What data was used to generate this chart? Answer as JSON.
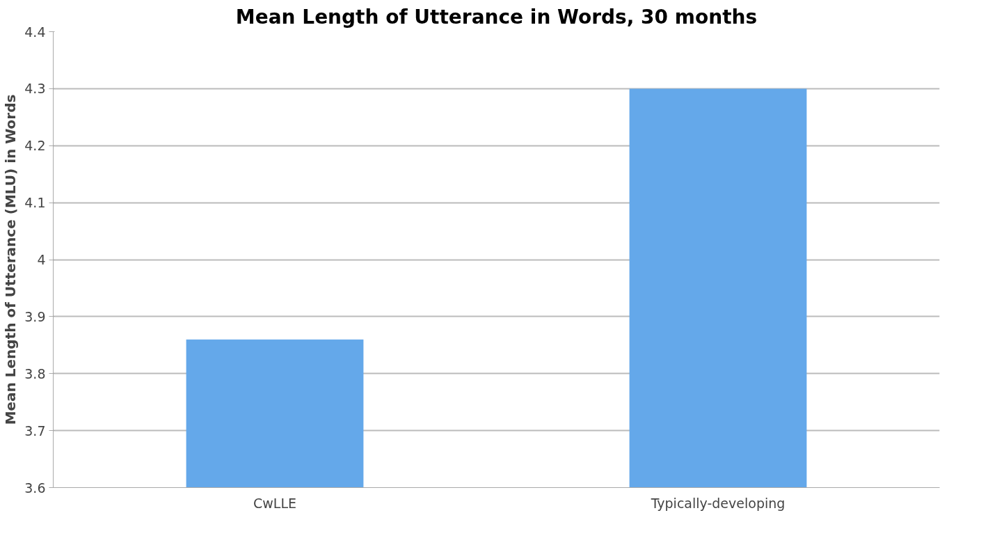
{
  "chart_data": {
    "type": "bar",
    "title": "Mean Length of Utterance in Words, 30 months",
    "ylabel": "Mean Length of Utterance (MLU) in Words",
    "categories": [
      "CwLLE",
      "Typically-developing"
    ],
    "values": [
      3.86,
      4.3
    ],
    "color": "#64a8ea",
    "ylim": [
      3.6,
      4.4
    ],
    "yticks": [
      3.6,
      3.7,
      3.8,
      3.9,
      {
        "value": 4.0,
        "label": "4"
      },
      4.1,
      4.2,
      4.3,
      4.4
    ],
    "grid": "y"
  }
}
